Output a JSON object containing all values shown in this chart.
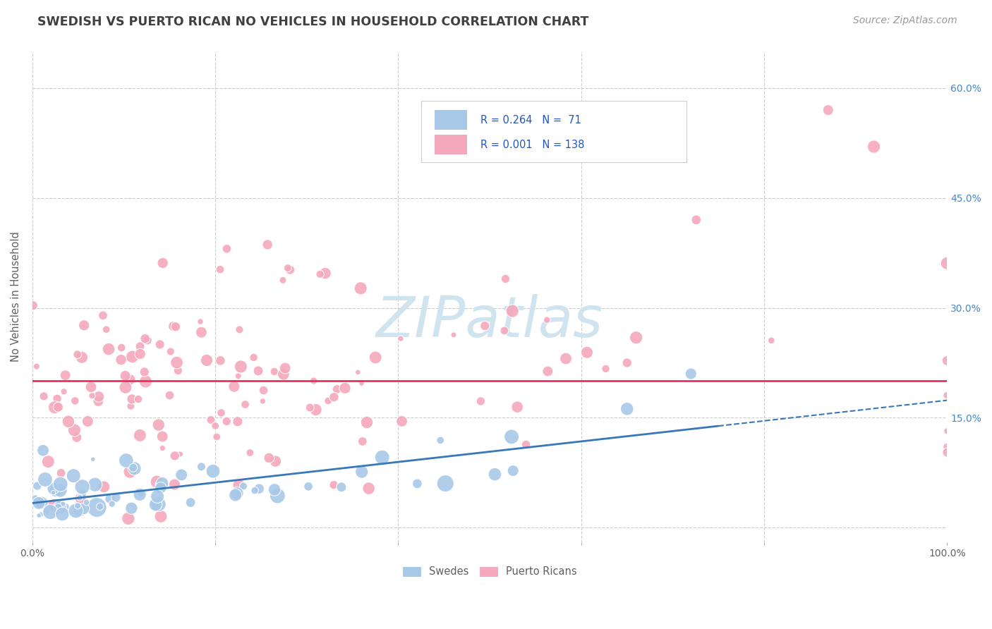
{
  "title": "SWEDISH VS PUERTO RICAN NO VEHICLES IN HOUSEHOLD CORRELATION CHART",
  "source": "Source: ZipAtlas.com",
  "ylabel": "No Vehicles in Household",
  "xlim": [
    0,
    100
  ],
  "ylim": [
    -2,
    65
  ],
  "xticks": [
    0,
    20,
    40,
    60,
    80,
    100
  ],
  "yticks": [
    0,
    15,
    30,
    45,
    60
  ],
  "yticklabels_right": [
    "",
    "15.0%",
    "30.0%",
    "45.0%",
    "60.0%"
  ],
  "swedish_R": 0.264,
  "swedish_N": 71,
  "puerto_rican_R": 0.001,
  "puerto_rican_N": 138,
  "swedish_color": "#a8c8e8",
  "puerto_rican_color": "#f4a8bc",
  "swedish_edge_color": "#7aaad0",
  "puerto_rican_edge_color": "#e880a0",
  "swedish_line_color": "#3878b8",
  "puerto_rican_line_color": "#e83060",
  "watermark": "ZIPatlas",
  "watermark_color": "#d0e4f0",
  "legend_label_swedish": "Swedes",
  "legend_label_puerto": "Puerto Ricans",
  "background_color": "#ffffff",
  "grid_color": "#cccccc",
  "title_color": "#404040",
  "axis_label_color": "#606060",
  "right_axis_color": "#4488cc",
  "legend_text_color": "#2255cc",
  "swedish_seed": 42,
  "puerto_rican_seed": 123
}
